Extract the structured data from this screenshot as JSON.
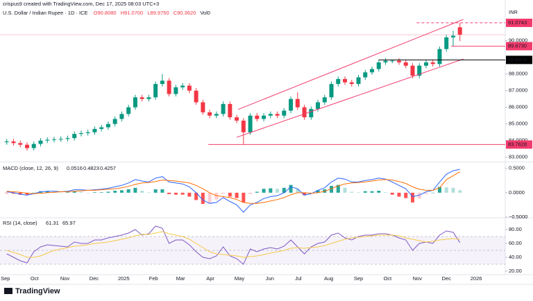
{
  "header": {
    "watermark": "crispus9 created with TradingView.com, Dec 17, 2025 08:03 UTC+3",
    "brand": "TradingView"
  },
  "chart_data": [
    {
      "type": "candlestick",
      "title": "U.S. Dollar / Indian Rupee · 1D · ICE",
      "ohlc_labels": [
        "O90.8080",
        "H91.0700",
        "L89.9750",
        "C90.3620",
        "Vol0"
      ],
      "currency": "INR",
      "up_color": "#089981",
      "down_color": "#f23645",
      "open": [
        83.9,
        83.95,
        83.85,
        83.75,
        83.55,
        83.8,
        84.0,
        84.05,
        84.08,
        84.1,
        84.15,
        84.4,
        84.45,
        84.5,
        84.7,
        84.8,
        85.0,
        85.3,
        85.6,
        86.0,
        86.6,
        86.5,
        86.6,
        87.4,
        87.6,
        86.8,
        87.2,
        87.3,
        87.0,
        86.3,
        85.7,
        85.5,
        85.6,
        86.2,
        85.4,
        85.2,
        84.5,
        85.5,
        85.3,
        85.5,
        85.6,
        85.5,
        85.8,
        86.5,
        86.0,
        85.4,
        85.9,
        86.3,
        86.6,
        87.4,
        87.7,
        87.5,
        87.4,
        87.8,
        88.1,
        88.3,
        88.7,
        88.8,
        88.8,
        88.7,
        88.5,
        87.9,
        88.5,
        88.7,
        88.6,
        89.5,
        90.2,
        90.808
      ],
      "high": [
        84.1,
        84.1,
        84.0,
        83.9,
        83.95,
        84.15,
        84.2,
        84.23,
        84.25,
        84.3,
        84.55,
        84.6,
        84.65,
        84.85,
        84.95,
        85.15,
        85.45,
        85.75,
        86.15,
        86.75,
        86.75,
        86.75,
        87.55,
        88.0,
        87.75,
        87.35,
        87.45,
        87.45,
        87.15,
        86.45,
        85.85,
        85.75,
        86.35,
        86.35,
        85.55,
        85.35,
        85.65,
        85.65,
        85.65,
        85.75,
        85.75,
        85.95,
        86.65,
        86.9,
        86.15,
        86.05,
        86.45,
        86.75,
        87.55,
        87.85,
        87.85,
        87.65,
        87.95,
        88.25,
        88.45,
        88.85,
        88.95,
        88.85,
        88.95,
        88.85,
        88.65,
        88.65,
        88.85,
        88.85,
        89.65,
        90.35,
        90.6,
        91.07
      ],
      "low": [
        83.75,
        83.7,
        83.6,
        83.4,
        83.4,
        83.65,
        83.85,
        83.9,
        83.93,
        83.95,
        84.0,
        84.25,
        84.3,
        84.35,
        84.55,
        84.65,
        84.85,
        85.15,
        85.45,
        85.85,
        86.35,
        86.35,
        86.45,
        87.25,
        86.65,
        86.65,
        87.05,
        86.85,
        86.15,
        85.55,
        85.35,
        85.35,
        85.45,
        85.25,
        85.05,
        83.76,
        84.35,
        85.15,
        85.15,
        85.35,
        85.35,
        85.35,
        85.65,
        85.85,
        85.25,
        85.25,
        85.75,
        86.15,
        86.45,
        87.25,
        87.35,
        87.25,
        87.25,
        87.65,
        87.95,
        88.15,
        88.55,
        88.65,
        88.55,
        88.35,
        87.75,
        87.75,
        88.35,
        88.45,
        88.45,
        89.35,
        89.67,
        89.975
      ],
      "close": [
        83.95,
        83.85,
        83.75,
        83.55,
        83.8,
        84.0,
        84.05,
        84.08,
        84.1,
        84.15,
        84.4,
        84.45,
        84.5,
        84.7,
        84.8,
        85.0,
        85.3,
        85.6,
        86.0,
        86.6,
        86.5,
        86.6,
        87.4,
        87.6,
        86.8,
        87.2,
        87.3,
        87.0,
        86.3,
        85.7,
        85.5,
        85.6,
        86.2,
        85.4,
        85.2,
        84.5,
        85.5,
        85.3,
        85.5,
        85.6,
        85.5,
        85.8,
        86.5,
        86.0,
        85.4,
        85.9,
        86.3,
        86.6,
        87.4,
        87.7,
        87.5,
        87.4,
        87.8,
        88.1,
        88.3,
        88.7,
        88.8,
        88.8,
        88.7,
        88.5,
        87.9,
        88.5,
        88.7,
        88.6,
        89.5,
        90.2,
        90.3,
        90.362
      ],
      "ylim": [
        82.78,
        92.03
      ],
      "yticks": [
        {
          "value": 90,
          "label": "90.0000"
        },
        {
          "value": 88,
          "label": "88.0000"
        },
        {
          "value": 87,
          "label": "87.0000"
        },
        {
          "value": 86,
          "label": "86.0000"
        },
        {
          "value": 85,
          "label": "85.0000"
        },
        {
          "value": 84,
          "label": "84.0000"
        },
        {
          "value": 83,
          "label": "83.0000"
        }
      ],
      "xlim": [
        -1,
        73.7
      ],
      "xticks": [
        {
          "value": -0.2,
          "label": "Sep"
        },
        {
          "value": 4.1,
          "label": "Oct"
        },
        {
          "value": 8.6,
          "label": "Nov"
        },
        {
          "value": 12.9,
          "label": "Dec"
        },
        {
          "value": 17.3,
          "label": "2025"
        },
        {
          "value": 21.7,
          "label": "Feb"
        },
        {
          "value": 25.7,
          "label": "Mar"
        },
        {
          "value": 30.1,
          "label": "Apr"
        },
        {
          "value": 34.4,
          "label": "May"
        },
        {
          "value": 38.9,
          "label": "Jun"
        },
        {
          "value": 43.1,
          "label": "Jul"
        },
        {
          "value": 47.6,
          "label": "Aug"
        },
        {
          "value": 52.0,
          "label": "Sep"
        },
        {
          "value": 56.3,
          "label": "Oct"
        },
        {
          "value": 60.7,
          "label": "Nov"
        },
        {
          "value": 65.0,
          "label": "Dec"
        },
        {
          "value": 69.4,
          "label": "2026"
        }
      ],
      "levels": [
        {
          "value": 91.0743,
          "label": "91.0743",
          "from": 60.6,
          "color": "#f23b6d",
          "dashed": true
        },
        {
          "value": 89.673,
          "label": "89.6730",
          "from": 65.7,
          "color": "#f23b6d",
          "dashed": false
        },
        {
          "value": 88.8474,
          "label": "88.8474",
          "from": 55,
          "color": "#000000",
          "dashed": false
        },
        {
          "value": 83.7628,
          "label": "83.7628",
          "from": 29.8,
          "color": "#f23b6d",
          "dashed": false
        }
      ],
      "channels": [
        {
          "x": [
            34.2,
            67.5
          ],
          "y": [
            85.87,
            91.28
          ]
        },
        {
          "x": [
            34.0,
            67.5
          ],
          "y": [
            84.2,
            88.9
          ]
        }
      ],
      "channel_color": "#f23b6d"
    },
    {
      "type": "macd",
      "title": "MACD (close, 12, 26, 9)",
      "legend_values": [
        {
          "value": 0.0516,
          "label": "0.0516",
          "color": "#26a69a"
        },
        {
          "value": 0.4823,
          "label": "0.4823",
          "color": "#2962ff"
        },
        {
          "value": 0.4257,
          "label": "0.4257",
          "color": "#ff6d00"
        }
      ],
      "ylim": [
        -0.5,
        0.61
      ],
      "yticks": [
        {
          "value": 0.5,
          "label": "0.5000"
        },
        {
          "value": 0,
          "label": "0.0000"
        },
        {
          "value": -0.5,
          "label": "−0.5000"
        }
      ],
      "series": [
        {
          "name": "MACD",
          "color": "#2962ff",
          "values": [
            0.02,
            0.0,
            -0.03,
            -0.05,
            -0.02,
            0.02,
            0.03,
            0.03,
            0.02,
            0.03,
            0.06,
            0.06,
            0.05,
            0.06,
            0.07,
            0.09,
            0.12,
            0.15,
            0.2,
            0.27,
            0.24,
            0.22,
            0.3,
            0.33,
            0.22,
            0.2,
            0.18,
            0.12,
            0.0,
            -0.15,
            -0.22,
            -0.2,
            -0.1,
            -0.18,
            -0.25,
            -0.4,
            -0.25,
            -0.2,
            -0.12,
            -0.08,
            -0.06,
            0.0,
            0.12,
            0.08,
            -0.05,
            -0.02,
            0.05,
            0.1,
            0.22,
            0.3,
            0.28,
            0.22,
            0.22,
            0.25,
            0.27,
            0.3,
            0.28,
            0.22,
            0.15,
            0.08,
            -0.08,
            -0.05,
            0.02,
            0.05,
            0.22,
            0.38,
            0.45,
            0.48
          ]
        },
        {
          "name": "Signal",
          "color": "#ff6d00",
          "values": [
            0.03,
            0.02,
            0.01,
            -0.01,
            -0.02,
            -0.01,
            0.0,
            0.01,
            0.02,
            0.02,
            0.03,
            0.04,
            0.05,
            0.05,
            0.06,
            0.07,
            0.08,
            0.1,
            0.13,
            0.17,
            0.2,
            0.21,
            0.23,
            0.26,
            0.25,
            0.24,
            0.22,
            0.2,
            0.15,
            0.08,
            0.0,
            -0.06,
            -0.08,
            -0.1,
            -0.14,
            -0.2,
            -0.22,
            -0.22,
            -0.2,
            -0.17,
            -0.14,
            -0.1,
            -0.04,
            0.0,
            0.0,
            -0.01,
            0.0,
            0.03,
            0.08,
            0.14,
            0.18,
            0.2,
            0.21,
            0.22,
            0.24,
            0.26,
            0.27,
            0.26,
            0.23,
            0.19,
            0.12,
            0.07,
            0.05,
            0.05,
            0.1,
            0.27,
            0.35,
            0.43
          ]
        }
      ],
      "histogram": [
        -0.01,
        -0.02,
        -0.04,
        -0.04,
        0.0,
        0.03,
        0.03,
        0.02,
        0.0,
        0.01,
        0.03,
        0.02,
        0.0,
        0.01,
        0.01,
        0.02,
        0.04,
        0.05,
        0.07,
        0.1,
        0.04,
        0.01,
        0.07,
        0.07,
        -0.03,
        -0.04,
        -0.04,
        -0.08,
        -0.15,
        -0.23,
        -0.22,
        -0.14,
        -0.02,
        -0.08,
        -0.11,
        -0.2,
        -0.03,
        0.02,
        0.08,
        0.09,
        0.08,
        0.1,
        0.16,
        0.08,
        -0.05,
        -0.01,
        0.05,
        0.07,
        0.14,
        0.16,
        0.1,
        0.02,
        0.01,
        0.03,
        0.03,
        0.04,
        0.01,
        -0.04,
        -0.08,
        -0.11,
        -0.2,
        -0.12,
        -0.03,
        0.0,
        0.12,
        0.11,
        0.1,
        0.05
      ]
    },
    {
      "type": "rsi",
      "title": "RSI (14, close)",
      "legend_values": [
        {
          "value": 61.31,
          "label": "61.31",
          "color": "#7e57c2"
        },
        {
          "value": 65.97,
          "label": "65.97",
          "color": "#f7c948"
        }
      ],
      "ylim": [
        16,
        96
      ],
      "yticks": [
        {
          "value": 80,
          "label": "80.00"
        },
        {
          "value": 60,
          "label": "60.00"
        },
        {
          "value": 40,
          "label": "40.00"
        },
        {
          "value": 20,
          "label": "20.00"
        }
      ],
      "overbought": 70,
      "middle": 50,
      "oversold": 30,
      "series": [
        {
          "name": "RSI",
          "color": "#7e57c2",
          "values": [
            45,
            40,
            35,
            32,
            48,
            55,
            58,
            57,
            56,
            55,
            62,
            60,
            60,
            65,
            65,
            68,
            70,
            72,
            75,
            80,
            72,
            74,
            85,
            82,
            60,
            65,
            65,
            58,
            48,
            40,
            38,
            42,
            55,
            42,
            38,
            30,
            52,
            48,
            52,
            54,
            52,
            56,
            65,
            55,
            45,
            55,
            60,
            62,
            72,
            75,
            68,
            65,
            70,
            72,
            72,
            74,
            74,
            72,
            68,
            65,
            50,
            60,
            62,
            60,
            72,
            78,
            76,
            61.31
          ]
        },
        {
          "name": "RSI MA",
          "color": "#f7c948",
          "values": [
            50,
            47,
            44,
            40,
            40,
            42,
            46,
            50,
            52,
            54,
            56,
            57,
            58,
            60,
            61,
            62,
            64,
            66,
            68,
            71,
            73,
            73,
            75,
            77,
            74,
            72,
            70,
            66,
            60,
            54,
            48,
            45,
            44,
            43,
            42,
            40,
            41,
            42,
            44,
            46,
            48,
            50,
            53,
            54,
            53,
            54,
            55,
            57,
            60,
            63,
            66,
            68,
            69,
            70,
            71,
            72,
            72,
            72,
            71,
            68,
            66,
            64,
            62,
            63,
            65,
            66,
            67,
            65.97
          ]
        }
      ]
    }
  ]
}
